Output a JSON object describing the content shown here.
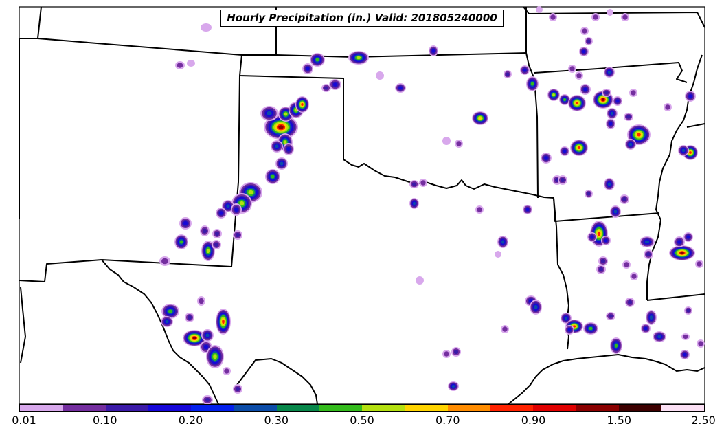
{
  "title": "Hourly Precipitation (in.) Valid: 201805240000",
  "colorbar": {
    "colors": [
      "#d8a8ec",
      "#742e9f",
      "#3b1aa8",
      "#1607d8",
      "#0320ec",
      "#0b4ca8",
      "#07874a",
      "#33bb1c",
      "#b4e010",
      "#ffd400",
      "#ff8c00",
      "#ff2200",
      "#e00000",
      "#8a0000",
      "#3d0000",
      "#fbe0f4"
    ],
    "tick_labels": [
      "0.01",
      "0.10",
      "0.20",
      "0.30",
      "0.50",
      "0.70",
      "0.90",
      "1.50",
      "2.50"
    ]
  },
  "legend_colors": {
    "level1": "#d8a8ec",
    "level2": "#742e9f",
    "level3": "#3b1aa8",
    "level4": "#1607d8",
    "level5": "#0b4ca8",
    "level6": "#33bb1c",
    "level7": "#b4e010",
    "level8": "#ffd400",
    "level9": "#ff2200",
    "level10": "#8a0000"
  }
}
